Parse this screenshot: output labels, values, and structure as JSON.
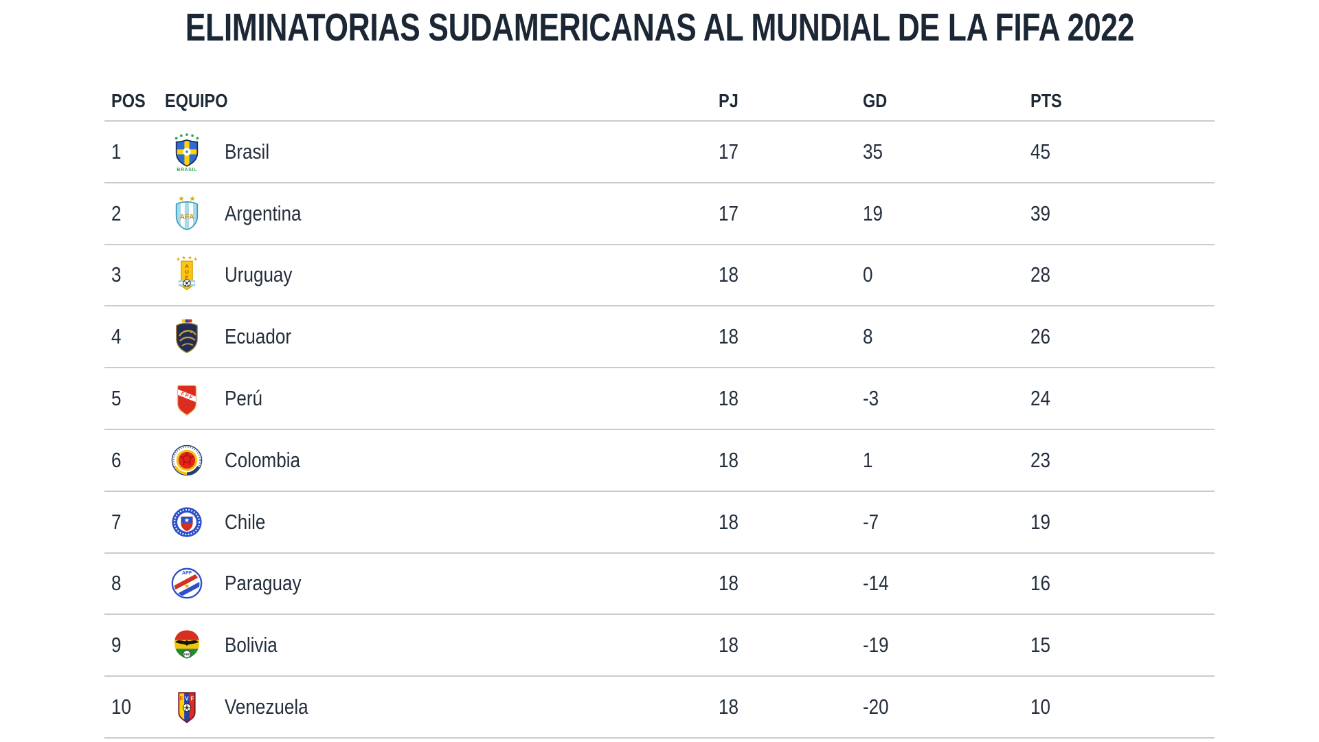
{
  "title": "ELIMINATORIAS SUDAMERICANAS AL MUNDIAL DE LA FIFA 2022",
  "table": {
    "columns": {
      "pos": "POS",
      "equipo": "EQUIPO",
      "pj": "PJ",
      "gd": "GD",
      "pts": "PTS"
    },
    "rows": [
      {
        "pos": "1",
        "team": "Brasil",
        "icon": "brasil-badge-icon",
        "pj": "17",
        "gd": "35",
        "pts": "45"
      },
      {
        "pos": "2",
        "team": "Argentina",
        "icon": "argentina-badge-icon",
        "pj": "17",
        "gd": "19",
        "pts": "39"
      },
      {
        "pos": "3",
        "team": "Uruguay",
        "icon": "uruguay-badge-icon",
        "pj": "18",
        "gd": "0",
        "pts": "28"
      },
      {
        "pos": "4",
        "team": "Ecuador",
        "icon": "ecuador-badge-icon",
        "pj": "18",
        "gd": "8",
        "pts": "26"
      },
      {
        "pos": "5",
        "team": "Perú",
        "icon": "peru-badge-icon",
        "pj": "18",
        "gd": "-3",
        "pts": "24"
      },
      {
        "pos": "6",
        "team": "Colombia",
        "icon": "colombia-badge-icon",
        "pj": "18",
        "gd": "1",
        "pts": "23"
      },
      {
        "pos": "7",
        "team": "Chile",
        "icon": "chile-badge-icon",
        "pj": "18",
        "gd": "-7",
        "pts": "19"
      },
      {
        "pos": "8",
        "team": "Paraguay",
        "icon": "paraguay-badge-icon",
        "pj": "18",
        "gd": "-14",
        "pts": "16"
      },
      {
        "pos": "9",
        "team": "Bolivia",
        "icon": "bolivia-badge-icon",
        "pj": "18",
        "gd": "-19",
        "pts": "15"
      },
      {
        "pos": "10",
        "team": "Venezuela",
        "icon": "venezuela-badge-icon",
        "pj": "18",
        "gd": "-20",
        "pts": "10"
      }
    ]
  },
  "colors": {
    "heading_text": "#1c2736",
    "body_text": "#232e3c",
    "divider": "#c8cbd1"
  }
}
